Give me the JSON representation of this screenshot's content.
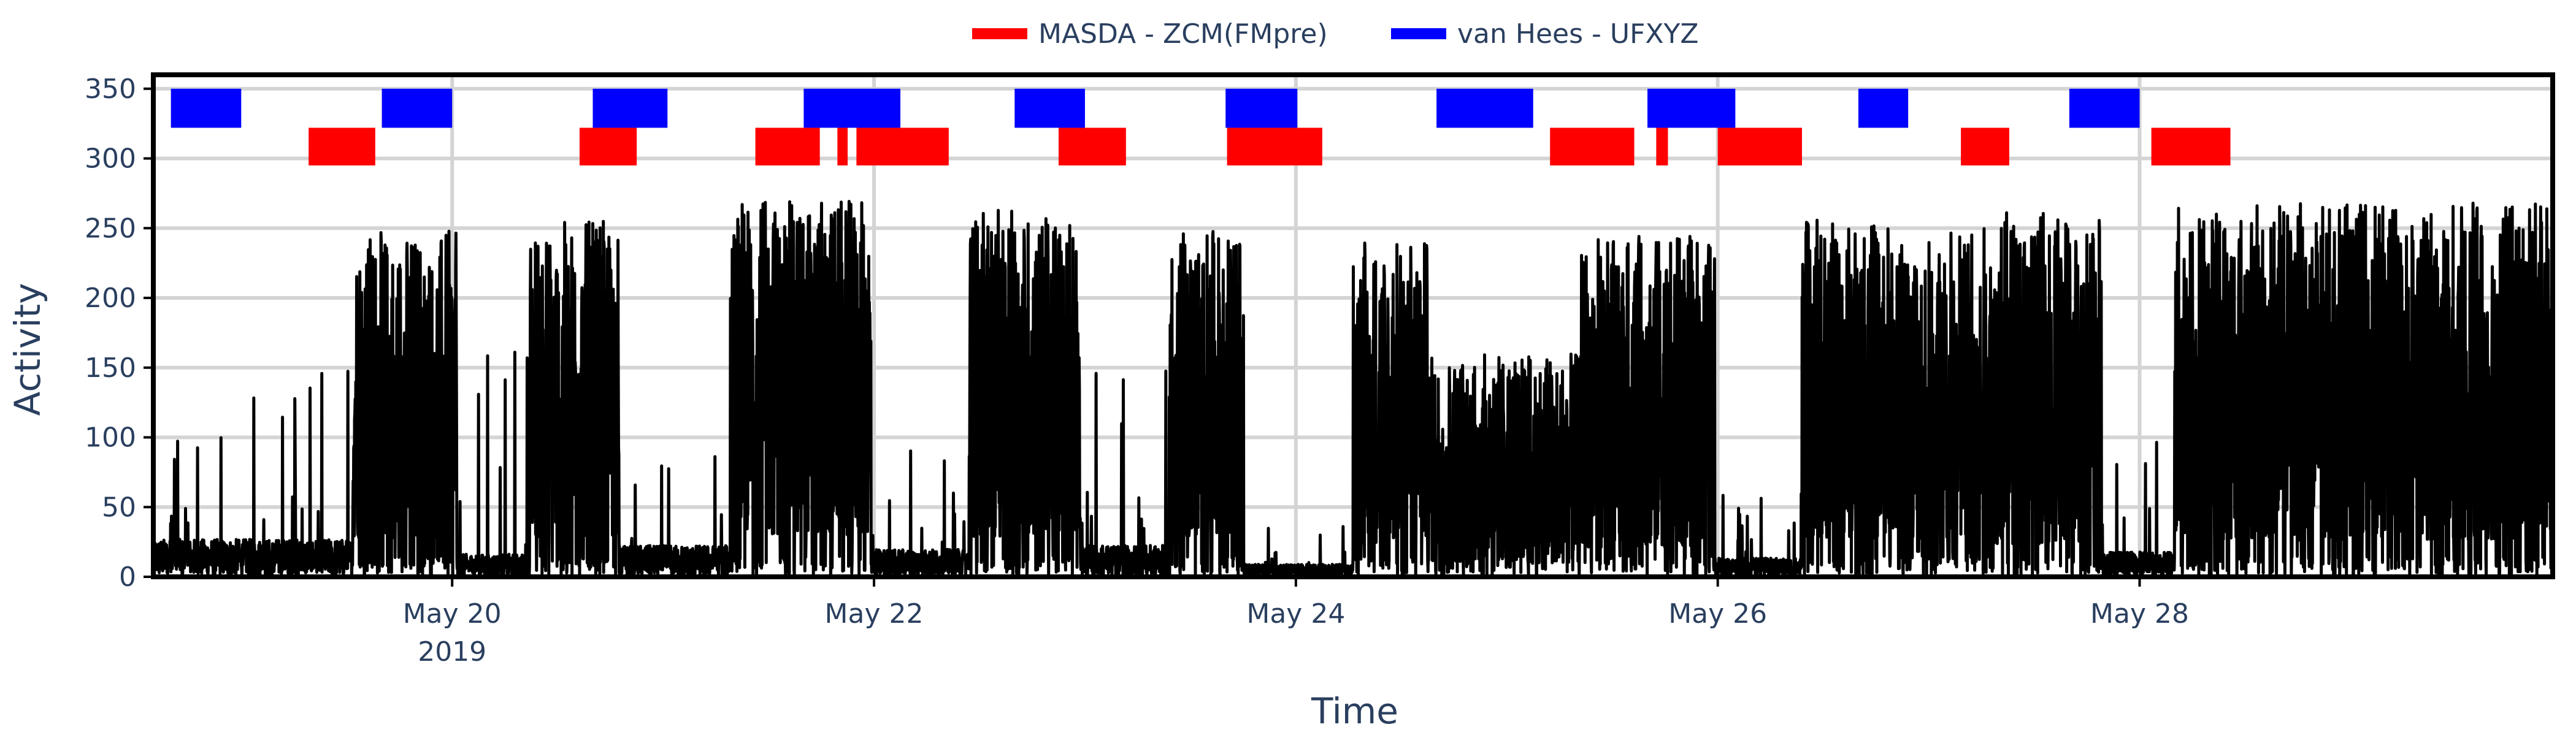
{
  "colors": {
    "masda": "#ff0000",
    "vanhees": "#0000ff",
    "activity": "#000000",
    "grid": "#d4d4d4",
    "frame": "#000000",
    "text": "#2a3f5f"
  },
  "legend": {
    "masda_label": "MASDA - ZCM(FMpre)",
    "vanhees_label": "van Hees - UFXYZ"
  },
  "chart_data": {
    "type": "line",
    "xlabel": "Time",
    "ylabel": "Activity",
    "xlim": [
      "2019-05-18 14:00",
      "2019-05-29 23:00"
    ],
    "ylim": [
      0,
      360
    ],
    "grid": true,
    "legend_position": "top-center",
    "x_ticks": [
      {
        "date": "2019-05-20",
        "label": "May 20",
        "sublabel": "2019"
      },
      {
        "date": "2019-05-22",
        "label": "May 22",
        "sublabel": ""
      },
      {
        "date": "2019-05-24",
        "label": "May 24",
        "sublabel": ""
      },
      {
        "date": "2019-05-26",
        "label": "May 26",
        "sublabel": ""
      },
      {
        "date": "2019-05-28",
        "label": "May 28",
        "sublabel": ""
      }
    ],
    "y_ticks": [
      0,
      50,
      100,
      150,
      200,
      250,
      300,
      350
    ],
    "series": [
      {
        "name": "MASDA - ZCM(FMpre)",
        "kind": "sleep-periods",
        "y_range": [
          295,
          322
        ],
        "periods": [
          [
            "2019-05-19 07:40",
            "2019-05-19 15:15"
          ],
          [
            "2019-05-20 14:30",
            "2019-05-20 21:00"
          ],
          [
            "2019-05-21 10:30",
            "2019-05-21 17:50"
          ],
          [
            "2019-05-21 19:50",
            "2019-05-21 21:00"
          ],
          [
            "2019-05-21 22:00",
            "2019-05-22 08:30"
          ],
          [
            "2019-05-22 21:00",
            "2019-05-23 04:40"
          ],
          [
            "2019-05-23 16:10",
            "2019-05-24 03:00"
          ],
          [
            "2019-05-25 04:55",
            "2019-05-25 14:30"
          ],
          [
            "2019-05-25 17:00",
            "2019-05-25 18:20"
          ],
          [
            "2019-05-26 00:00",
            "2019-05-26 09:35"
          ],
          [
            "2019-05-27 03:40",
            "2019-05-27 09:10"
          ],
          [
            "2019-05-28 01:20",
            "2019-05-28 10:20"
          ]
        ]
      },
      {
        "name": "van Hees - UFXYZ",
        "kind": "sleep-periods",
        "y_range": [
          322,
          350
        ],
        "periods": [
          [
            "2019-05-18 16:00",
            "2019-05-19 00:00"
          ],
          [
            "2019-05-19 16:00",
            "2019-05-20 00:00"
          ],
          [
            "2019-05-20 16:00",
            "2019-05-21 00:30"
          ],
          [
            "2019-05-21 16:00",
            "2019-05-22 03:00"
          ],
          [
            "2019-05-22 16:00",
            "2019-05-23 00:00"
          ],
          [
            "2019-05-23 16:00",
            "2019-05-24 00:10"
          ],
          [
            "2019-05-24 16:00",
            "2019-05-25 03:00"
          ],
          [
            "2019-05-25 16:00",
            "2019-05-26 02:00"
          ],
          [
            "2019-05-26 16:00",
            "2019-05-26 21:40"
          ],
          [
            "2019-05-27 16:00",
            "2019-05-28 00:00"
          ]
        ]
      },
      {
        "name": "Activity",
        "kind": "activity-profile",
        "note_free": true,
        "profile": [
          {
            "start": "2019-05-18 14:00",
            "end": "2019-05-19 12:40",
            "level": 30,
            "peak": 152
          },
          {
            "start": "2019-05-19 12:40",
            "end": "2019-05-20 00:30",
            "level": 110,
            "peak": 248
          },
          {
            "start": "2019-05-20 00:30",
            "end": "2019-05-20 08:50",
            "level": 18,
            "peak": 172
          },
          {
            "start": "2019-05-20 08:50",
            "end": "2019-05-20 19:00",
            "level": 110,
            "peak": 255
          },
          {
            "start": "2019-05-20 19:00",
            "end": "2019-05-21 07:40",
            "level": 25,
            "peak": 90
          },
          {
            "start": "2019-05-21 07:40",
            "end": "2019-05-21 23:40",
            "level": 120,
            "peak": 270
          },
          {
            "start": "2019-05-21 23:40",
            "end": "2019-05-22 10:50",
            "level": 22,
            "peak": 95
          },
          {
            "start": "2019-05-22 10:50",
            "end": "2019-05-22 23:30",
            "level": 115,
            "peak": 263
          },
          {
            "start": "2019-05-22 23:30",
            "end": "2019-05-23 09:40",
            "level": 25,
            "peak": 150
          },
          {
            "start": "2019-05-23 09:40",
            "end": "2019-05-23 18:10",
            "level": 110,
            "peak": 248
          },
          {
            "start": "2019-05-23 18:10",
            "end": "2019-05-24 06:30",
            "level": 10,
            "peak": 40
          },
          {
            "start": "2019-05-24 06:30",
            "end": "2019-05-24 15:00",
            "level": 95,
            "peak": 242
          },
          {
            "start": "2019-05-24 15:00",
            "end": "2019-05-25 08:30",
            "level": 40,
            "peak": 160
          },
          {
            "start": "2019-05-25 08:30",
            "end": "2019-05-25 23:40",
            "level": 85,
            "peak": 245
          },
          {
            "start": "2019-05-25 23:40",
            "end": "2019-05-26 09:30",
            "level": 15,
            "peak": 60
          },
          {
            "start": "2019-05-26 09:30",
            "end": "2019-05-26 21:00",
            "level": 110,
            "peak": 256
          },
          {
            "start": "2019-05-26 21:00",
            "end": "2019-05-27 07:30",
            "level": 55,
            "peak": 252
          },
          {
            "start": "2019-05-27 07:30",
            "end": "2019-05-27 19:40",
            "level": 95,
            "peak": 263
          },
          {
            "start": "2019-05-27 19:40",
            "end": "2019-05-28 04:00",
            "level": 20,
            "peak": 120
          },
          {
            "start": "2019-05-28 04:00",
            "end": "2019-05-29 23:00",
            "level": 105,
            "peak": 268
          }
        ]
      }
    ]
  }
}
